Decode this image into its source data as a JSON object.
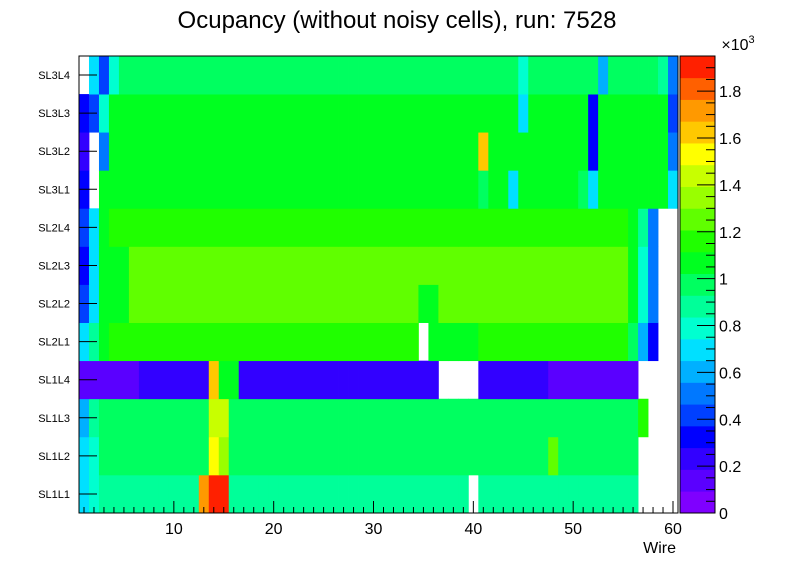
{
  "chart_data": {
    "type": "heatmap",
    "title": "Ocupancy (without noisy cells), run: 7528",
    "xlabel": "Wire",
    "ylabel": "",
    "x_range": [
      0.5,
      60.5
    ],
    "x_ticks": [
      "10",
      "20",
      "30",
      "40",
      "50",
      "60"
    ],
    "layers": [
      "SL1L1",
      "SL1L2",
      "SL1L3",
      "SL1L4",
      "SL2L1",
      "SL2L2",
      "SL2L3",
      "SL2L4",
      "SL3L1",
      "SL3L2",
      "SL3L3",
      "SL3L4"
    ],
    "z_range": [
      0,
      1950
    ],
    "z_exponent_label": "×10",
    "z_exponent": "3",
    "z_ticks": [
      "0",
      "0.2",
      "0.4",
      "0.6",
      "0.8",
      "1",
      "1.2",
      "1.4",
      "1.6",
      "1.8"
    ],
    "palette": [
      "#7f00ff",
      "#5a00ff",
      "#3200ff",
      "#0000ff",
      "#0040ff",
      "#0078ff",
      "#00b0ff",
      "#00e0ff",
      "#00ffd0",
      "#00ff99",
      "#00ff60",
      "#00ff20",
      "#20ff00",
      "#60ff00",
      "#99ff00",
      "#c8ff00",
      "#ffff00",
      "#ffc800",
      "#ff9900",
      "#ff6000",
      "#ff2000"
    ],
    "rows": [
      {
        "layer": "SL1L1",
        "default": 880,
        "cells": {
          "1": 700,
          "2": 800,
          "3": 850,
          "13": 1680,
          "14": 1900,
          "15": 1900,
          "40": null,
          "57": null,
          "58": null,
          "59": null,
          "60": null
        }
      },
      {
        "layer": "SL1L2",
        "default": 930,
        "cells": {
          "1": 650,
          "2": 800,
          "14": 1500,
          "15": 1350,
          "48": 1250,
          "57": null,
          "58": null,
          "59": null,
          "60": null
        }
      },
      {
        "layer": "SL1L3",
        "default": 980,
        "cells": {
          "1": 600,
          "2": 850,
          "14": 1400,
          "15": 1450,
          "57": 1200,
          "58": null,
          "59": null,
          "60": null
        }
      },
      {
        "layer": "SL1L4",
        "default": 260,
        "cells": {
          "1": 100,
          "2": 100,
          "3": 100,
          "4": 100,
          "5": 100,
          "6": 100,
          "14": 1650,
          "15": 1100,
          "16": 1100,
          "37": null,
          "38": null,
          "39": null,
          "40": null,
          "48": 100,
          "49": 100,
          "50": 100,
          "51": 100,
          "52": 100,
          "53": 100,
          "54": 100,
          "55": 100,
          "56": 100,
          "57": null,
          "58": null,
          "59": null,
          "60": null
        }
      },
      {
        "layer": "SL2L1",
        "default": 1200,
        "cells": {
          "1": 650,
          "2": 850,
          "3": 1100,
          "35": null,
          "36": 1050,
          "37": 1050,
          "38": 1050,
          "39": 1050,
          "40": 1050,
          "56": 1000,
          "57": 600,
          "58": 350,
          "59": null,
          "60": null
        }
      },
      {
        "layer": "SL2L2",
        "default": 1250,
        "cells": {
          "1": 400,
          "2": 700,
          "3": 1100,
          "4": 1100,
          "5": 1050,
          "35": 1100,
          "36": 1100,
          "56": 1100,
          "57": 750,
          "58": 500,
          "59": null,
          "60": null
        }
      },
      {
        "layer": "SL2L3",
        "default": 1280,
        "cells": {
          "1": 350,
          "2": 700,
          "3": 1050,
          "4": 1100,
          "5": 1050,
          "56": 1100,
          "57": 750,
          "58": 500,
          "59": null,
          "60": null
        }
      },
      {
        "layer": "SL2L4",
        "default": 1200,
        "cells": {
          "1": 420,
          "2": 650,
          "3": 1100,
          "56": 1100,
          "57": 900,
          "58": 500,
          "59": null,
          "60": null
        }
      },
      {
        "layer": "SL3L1",
        "default": 1080,
        "cells": {
          "1": 300,
          "2": null,
          "41": 1000,
          "44": 650,
          "51": 1000,
          "52": 650,
          "60": 650
        }
      },
      {
        "layer": "SL3L2",
        "default": 1050,
        "cells": {
          "1": 250,
          "2": null,
          "3": 500,
          "41": 1600,
          "52": 350,
          "60": 550
        }
      },
      {
        "layer": "SL3L3",
        "default": 1050,
        "cells": {
          "1": 300,
          "2": 450,
          "3": 750,
          "45": 650,
          "52": 350,
          "60": 450
        }
      },
      {
        "layer": "SL3L4",
        "default": 1000,
        "cells": {
          "1": null,
          "2": 700,
          "3": 450,
          "4": 800,
          "45": 800,
          "53": 600,
          "59": 900,
          "60": 550
        }
      }
    ]
  }
}
